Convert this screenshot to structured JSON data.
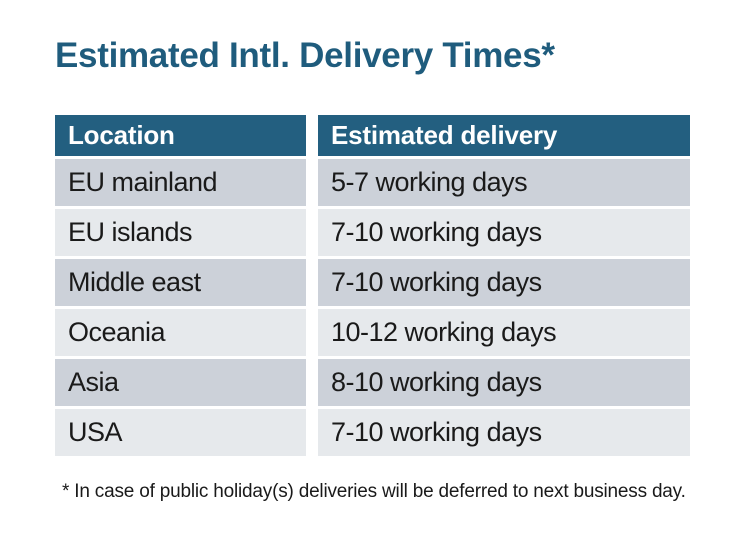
{
  "title": "Estimated Intl. Delivery Times*",
  "table": {
    "columns": {
      "location_header": "Location",
      "delivery_header": "Estimated delivery"
    },
    "rows": [
      {
        "location": "EU mainland",
        "delivery": "5-7 working days"
      },
      {
        "location": "EU islands",
        "delivery": "7-10 working days"
      },
      {
        "location": "Middle east",
        "delivery": "7-10 working days"
      },
      {
        "location": "Oceania",
        "delivery": "10-12 working days"
      },
      {
        "location": "Asia",
        "delivery": "8-10 working days"
      },
      {
        "location": "USA",
        "delivery": "7-10 working days"
      }
    ]
  },
  "footnote": "* In case of public holiday(s) deliveries will be deferred to next business day.",
  "colors": {
    "background": "#ffffff",
    "title": "#1f5c7d",
    "header_bg": "#235f80",
    "header_text": "#ffffff",
    "row_odd_bg": "#ccd1d9",
    "row_even_bg": "#e6e9ec",
    "row_text": "#1a1a1a"
  }
}
